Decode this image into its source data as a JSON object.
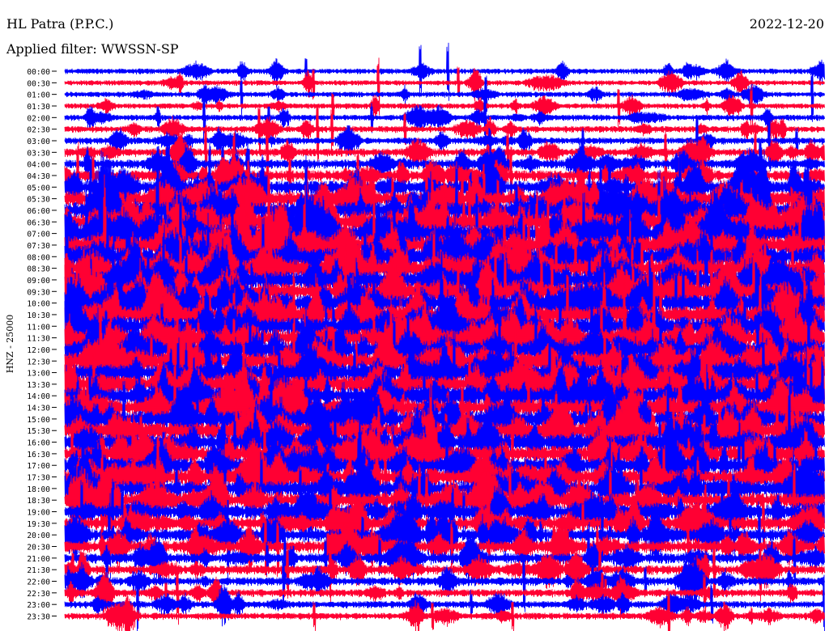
{
  "header": {
    "station": "HL Patra (P.P.C.)",
    "filter": "Applied filter: WWSSN-SP",
    "date": "2022-12-20"
  },
  "chart_data": {
    "type": "helicorder",
    "title": "HL Patra (P.P.C.)",
    "ylabel": "HNZ - 25000",
    "rows": [
      {
        "time": "00:00",
        "activity": 0.12,
        "color": "#0000ff"
      },
      {
        "time": "00:30",
        "activity": 0.1,
        "color": "#ff0033"
      },
      {
        "time": "01:00",
        "activity": 0.12,
        "color": "#0000ff"
      },
      {
        "time": "01:30",
        "activity": 0.12,
        "color": "#ff0033"
      },
      {
        "time": "02:00",
        "activity": 0.15,
        "color": "#0000ff"
      },
      {
        "time": "02:30",
        "activity": 0.18,
        "color": "#ff0033"
      },
      {
        "time": "03:00",
        "activity": 0.2,
        "color": "#0000ff"
      },
      {
        "time": "03:30",
        "activity": 0.28,
        "color": "#ff0033"
      },
      {
        "time": "04:00",
        "activity": 0.35,
        "color": "#0000ff"
      },
      {
        "time": "04:30",
        "activity": 0.45,
        "color": "#ff0033"
      },
      {
        "time": "05:00",
        "activity": 0.6,
        "color": "#0000ff"
      },
      {
        "time": "05:30",
        "activity": 0.75,
        "color": "#ff0033"
      },
      {
        "time": "06:00",
        "activity": 0.85,
        "color": "#0000ff"
      },
      {
        "time": "06:30",
        "activity": 0.9,
        "color": "#ff0033"
      },
      {
        "time": "07:00",
        "activity": 0.95,
        "color": "#0000ff"
      },
      {
        "time": "07:30",
        "activity": 0.95,
        "color": "#ff0033"
      },
      {
        "time": "08:00",
        "activity": 0.95,
        "color": "#0000ff"
      },
      {
        "time": "08:30",
        "activity": 0.92,
        "color": "#ff0033"
      },
      {
        "time": "09:00",
        "activity": 0.9,
        "color": "#0000ff"
      },
      {
        "time": "09:30",
        "activity": 0.9,
        "color": "#ff0033"
      },
      {
        "time": "10:00",
        "activity": 0.88,
        "color": "#0000ff"
      },
      {
        "time": "10:30",
        "activity": 0.88,
        "color": "#ff0033"
      },
      {
        "time": "11:00",
        "activity": 0.88,
        "color": "#0000ff"
      },
      {
        "time": "11:30",
        "activity": 0.88,
        "color": "#ff0033"
      },
      {
        "time": "12:00",
        "activity": 0.85,
        "color": "#0000ff"
      },
      {
        "time": "12:30",
        "activity": 0.85,
        "color": "#ff0033"
      },
      {
        "time": "13:00",
        "activity": 0.85,
        "color": "#0000ff"
      },
      {
        "time": "13:30",
        "activity": 0.85,
        "color": "#ff0033"
      },
      {
        "time": "14:00",
        "activity": 0.85,
        "color": "#0000ff"
      },
      {
        "time": "14:30",
        "activity": 0.82,
        "color": "#ff0033"
      },
      {
        "time": "15:00",
        "activity": 0.82,
        "color": "#0000ff"
      },
      {
        "time": "15:30",
        "activity": 0.8,
        "color": "#ff0033"
      },
      {
        "time": "16:00",
        "activity": 0.8,
        "color": "#0000ff"
      },
      {
        "time": "16:30",
        "activity": 0.78,
        "color": "#ff0033"
      },
      {
        "time": "17:00",
        "activity": 0.75,
        "color": "#0000ff"
      },
      {
        "time": "17:30",
        "activity": 0.72,
        "color": "#ff0033"
      },
      {
        "time": "18:00",
        "activity": 0.72,
        "color": "#0000ff"
      },
      {
        "time": "18:30",
        "activity": 0.68,
        "color": "#ff0033"
      },
      {
        "time": "19:00",
        "activity": 0.65,
        "color": "#0000ff"
      },
      {
        "time": "19:30",
        "activity": 0.58,
        "color": "#ff0033"
      },
      {
        "time": "20:00",
        "activity": 0.55,
        "color": "#0000ff"
      },
      {
        "time": "20:30",
        "activity": 0.5,
        "color": "#ff0033"
      },
      {
        "time": "21:00",
        "activity": 0.4,
        "color": "#0000ff"
      },
      {
        "time": "21:30",
        "activity": 0.35,
        "color": "#ff0033"
      },
      {
        "time": "22:00",
        "activity": 0.3,
        "color": "#0000ff"
      },
      {
        "time": "22:30",
        "activity": 0.25,
        "color": "#ff0033"
      },
      {
        "time": "23:00",
        "activity": 0.22,
        "color": "#0000ff"
      },
      {
        "time": "23:30",
        "activity": 0.2,
        "color": "#ff0033"
      }
    ],
    "colors": {
      "odd": "#0000ff",
      "even": "#ff0033"
    }
  }
}
